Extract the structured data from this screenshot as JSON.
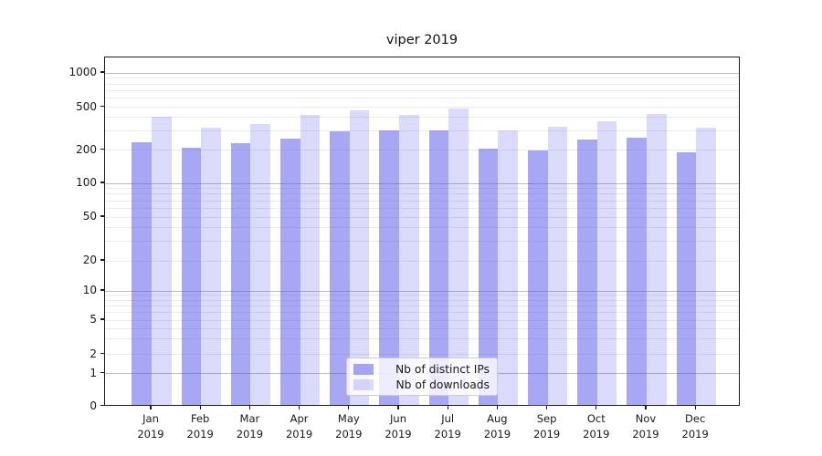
{
  "chart_data": {
    "type": "bar",
    "title": "viper 2019",
    "categories": [
      "Jan",
      "Feb",
      "Mar",
      "Apr",
      "May",
      "Jun",
      "Jul",
      "Aug",
      "Sep",
      "Oct",
      "Nov",
      "Dec"
    ],
    "category_year": "2019",
    "series": [
      {
        "name": "Nb of distinct IPs",
        "color": "#a7a7f3",
        "fill": "rgba(80,80,232,0.50)",
        "values": [
          235,
          210,
          230,
          255,
          300,
          305,
          305,
          207,
          200,
          252,
          260,
          192
        ]
      },
      {
        "name": "Nb of downloads",
        "color": "#dadafa",
        "fill": "rgba(80,80,232,0.21)",
        "values": [
          410,
          320,
          350,
          420,
          465,
          425,
          490,
          302,
          327,
          370,
          430,
          325
        ]
      }
    ],
    "y_ticks": [
      0,
      1,
      2,
      5,
      10,
      20,
      50,
      100,
      200,
      500,
      1000
    ],
    "y_scale": "symlog",
    "ylim": [
      0,
      1400
    ],
    "xlabel": "",
    "ylabel": "",
    "grid": true,
    "legend_position": "lower center"
  }
}
